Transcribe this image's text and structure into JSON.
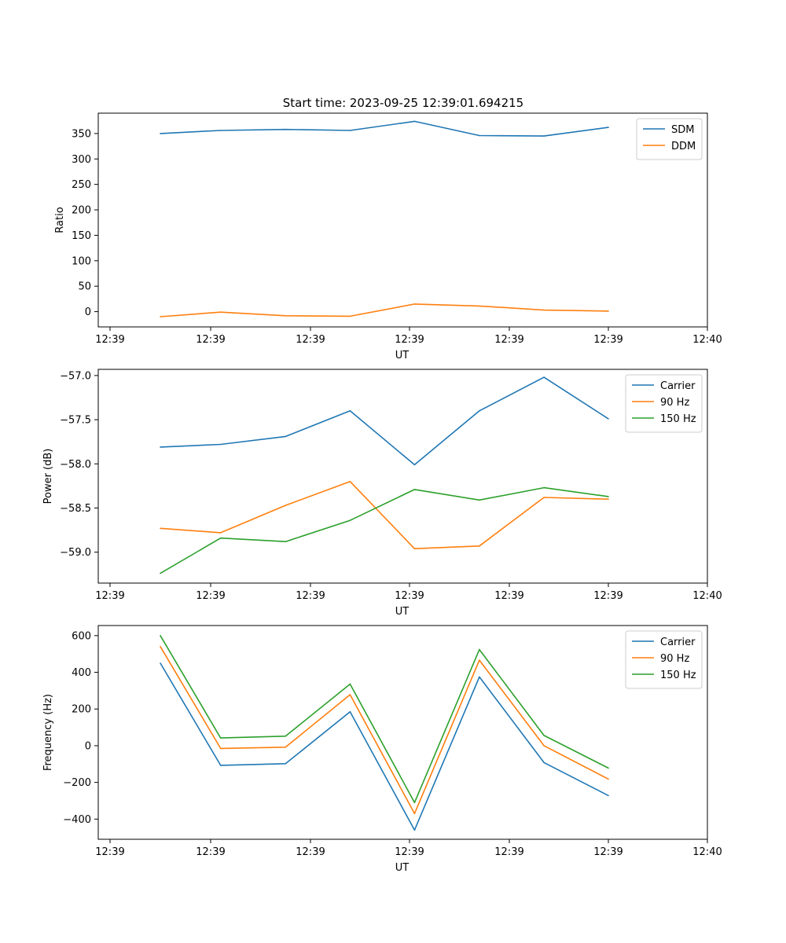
{
  "title": "Start time: 2023-09-25 12:39:01.694215",
  "chart_data": [
    {
      "type": "line",
      "title": "Start time: 2023-09-25 12:39:01.694215",
      "xlabel": "UT",
      "ylabel": "Ratio",
      "x_ticks": [
        "12:39",
        "12:39",
        "12:39",
        "12:39",
        "12:39",
        "12:39",
        "12:40"
      ],
      "y_ticks": [
        0,
        50,
        100,
        150,
        200,
        250,
        300,
        350
      ],
      "ylim": [
        -30,
        390
      ],
      "x_index": [
        0.5,
        1.1,
        1.75,
        2.4,
        3.05,
        3.7,
        4.35,
        5.0
      ],
      "xlim": [
        0,
        6
      ],
      "legend": "top-right",
      "series": [
        {
          "name": "SDM",
          "color": "#1f77b4",
          "values": [
            350,
            356,
            358,
            356,
            374,
            346,
            345,
            362
          ]
        },
        {
          "name": "DDM",
          "color": "#ff7f0e",
          "values": [
            -10,
            -1,
            -8,
            -9,
            15,
            11,
            3,
            1
          ]
        }
      ]
    },
    {
      "type": "line",
      "title": "",
      "xlabel": "UT",
      "ylabel": "Power (dB)",
      "x_ticks": [
        "12:39",
        "12:39",
        "12:39",
        "12:39",
        "12:39",
        "12:39",
        "12:40"
      ],
      "y_ticks": [
        -59.0,
        -58.5,
        -58.0,
        -57.5,
        -57.0
      ],
      "y_tick_labels": [
        "−59.0",
        "−58.5",
        "−58.0",
        "−57.5",
        "−57.0"
      ],
      "ylim": [
        -59.35,
        -56.93
      ],
      "x_index": [
        0.5,
        1.1,
        1.75,
        2.4,
        3.05,
        3.7,
        4.35,
        5.0
      ],
      "xlim": [
        0,
        6
      ],
      "legend": "top-right",
      "series": [
        {
          "name": "Carrier",
          "color": "#1f77b4",
          "values": [
            -57.81,
            -57.78,
            -57.69,
            -57.4,
            -58.01,
            -57.4,
            -57.02,
            -57.49
          ]
        },
        {
          "name": "90 Hz",
          "color": "#ff7f0e",
          "values": [
            -58.73,
            -58.78,
            -58.47,
            -58.2,
            -58.96,
            -58.93,
            -58.38,
            -58.4
          ]
        },
        {
          "name": "150 Hz",
          "color": "#2ca02c",
          "values": [
            -59.24,
            -58.84,
            -58.88,
            -58.64,
            -58.29,
            -58.41,
            -58.27,
            -58.37
          ]
        }
      ]
    },
    {
      "type": "line",
      "title": "",
      "xlabel": "UT",
      "ylabel": "Frequency (Hz)",
      "x_ticks": [
        "12:39",
        "12:39",
        "12:39",
        "12:39",
        "12:39",
        "12:39",
        "12:40"
      ],
      "y_ticks": [
        -400,
        -200,
        0,
        200,
        400,
        600
      ],
      "y_tick_labels": [
        "−400",
        "−200",
        "0",
        "200",
        "400",
        "600"
      ],
      "ylim": [
        -510,
        655
      ],
      "x_index": [
        0.5,
        1.1,
        1.75,
        2.4,
        3.05,
        3.7,
        4.35,
        5.0
      ],
      "xlim": [
        0,
        6
      ],
      "legend": "top-right",
      "series": [
        {
          "name": "Carrier",
          "color": "#1f77b4",
          "values": [
            450,
            -107,
            -98,
            185,
            -460,
            375,
            -92,
            -272
          ]
        },
        {
          "name": "90 Hz",
          "color": "#ff7f0e",
          "values": [
            540,
            -15,
            -8,
            278,
            -370,
            466,
            0,
            -182
          ]
        },
        {
          "name": "150 Hz",
          "color": "#2ca02c",
          "values": [
            600,
            42,
            52,
            336,
            -310,
            524,
            56,
            -122
          ]
        }
      ]
    }
  ]
}
